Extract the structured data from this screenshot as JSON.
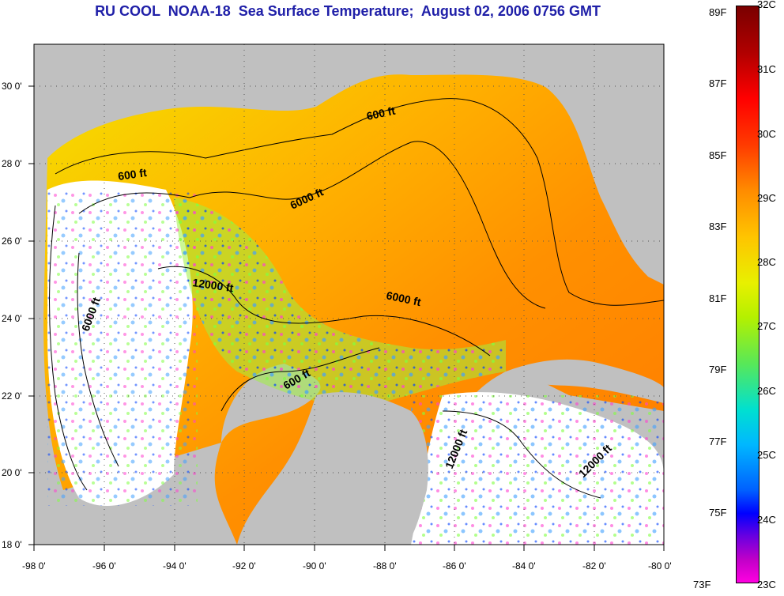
{
  "title": "RU COOL  NOAA-18  Sea Surface Temperature;  August 02, 2006 0756 GMT",
  "axes": {
    "lat_labels": [
      "30 0'",
      "28 0'",
      "26 0'",
      "24 0'",
      "22 0'",
      "20 0'",
      "18 0'"
    ],
    "lon_labels": [
      "-98 0'",
      "-96 0'",
      "-94 0'",
      "-92 0'",
      "-90 0'",
      "-88 0'",
      "-86 0'",
      "-84 0'",
      "-82 0'",
      "-80 0'"
    ]
  },
  "contour_labels": [
    "600 ft",
    "600 ft",
    "6000 ft",
    "12000 ft",
    "6000 ft",
    "6000 ft",
    "600 ft",
    "12000 ft",
    "12000 ft"
  ],
  "colorbar": {
    "fahrenheit": [
      "89F",
      "87F",
      "85F",
      "83F",
      "81F",
      "79F",
      "77F",
      "75F",
      "73F"
    ],
    "celsius": [
      "32C",
      "31C",
      "30C",
      "29C",
      "28C",
      "27C",
      "26C",
      "25C",
      "24C",
      "23C"
    ]
  },
  "colors": {
    "land": "#c0c0c0",
    "cloud": "#ffffff",
    "warm": "#ff8c00",
    "title": "#1f1fa8"
  }
}
